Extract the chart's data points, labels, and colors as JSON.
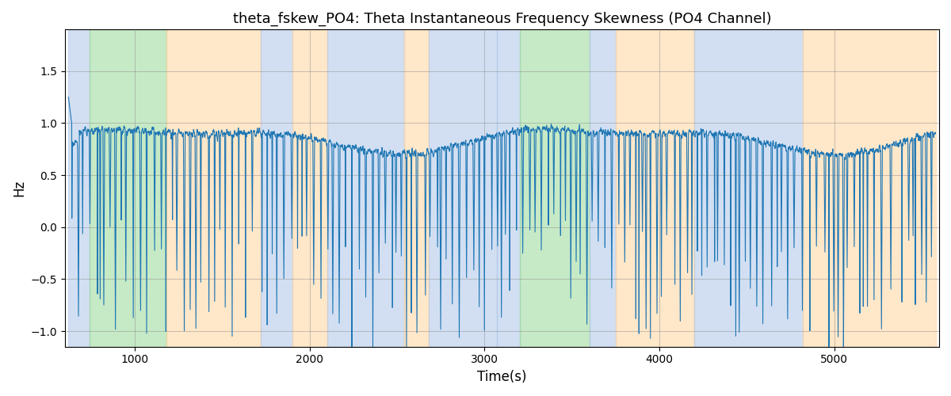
{
  "title": "theta_fskew_PO4: Theta Instantaneous Frequency Skewness (PO4 Channel)",
  "xlabel": "Time(s)",
  "ylabel": "Hz",
  "xlim": [
    600,
    5600
  ],
  "ylim": [
    -1.15,
    1.9
  ],
  "line_color": "#1f77b4",
  "line_width": 0.8,
  "seed": 42,
  "n_points": 5000,
  "x_start": 620,
  "x_end": 5580,
  "background_bands": [
    {
      "xmin": 620,
      "xmax": 740,
      "color": "#aec6e8",
      "alpha": 0.55
    },
    {
      "xmin": 740,
      "xmax": 1180,
      "color": "#98d898",
      "alpha": 0.55
    },
    {
      "xmin": 1180,
      "xmax": 1720,
      "color": "#ffd59e",
      "alpha": 0.55
    },
    {
      "xmin": 1720,
      "xmax": 1900,
      "color": "#aec6e8",
      "alpha": 0.55
    },
    {
      "xmin": 1900,
      "xmax": 2100,
      "color": "#ffd59e",
      "alpha": 0.55
    },
    {
      "xmin": 2100,
      "xmax": 2540,
      "color": "#aec6e8",
      "alpha": 0.55
    },
    {
      "xmin": 2540,
      "xmax": 2680,
      "color": "#ffd59e",
      "alpha": 0.55
    },
    {
      "xmin": 2680,
      "xmax": 3070,
      "color": "#aec6e8",
      "alpha": 0.55
    },
    {
      "xmin": 3070,
      "xmax": 3200,
      "color": "#aec6e8",
      "alpha": 0.55
    },
    {
      "xmin": 3200,
      "xmax": 3600,
      "color": "#98d898",
      "alpha": 0.55
    },
    {
      "xmin": 3600,
      "xmax": 3750,
      "color": "#aec6e8",
      "alpha": 0.55
    },
    {
      "xmin": 3750,
      "xmax": 4200,
      "color": "#ffd59e",
      "alpha": 0.55
    },
    {
      "xmin": 4200,
      "xmax": 4820,
      "color": "#aec6e8",
      "alpha": 0.55
    },
    {
      "xmin": 4820,
      "xmax": 5580,
      "color": "#ffd59e",
      "alpha": 0.55
    }
  ],
  "yticks": [
    -1.0,
    -0.5,
    0.0,
    0.5,
    1.0,
    1.5
  ],
  "xticks": [
    1000,
    2000,
    3000,
    4000,
    5000
  ]
}
